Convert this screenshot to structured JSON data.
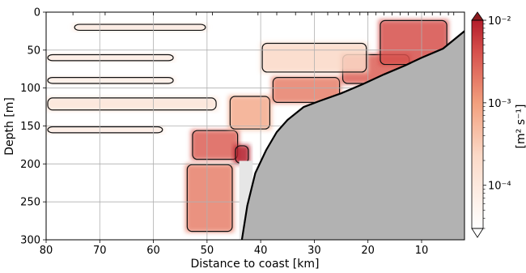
{
  "chart_data": {
    "type": "heatmap",
    "title": "",
    "xlabel": "Distance to coast [km]",
    "ylabel": "Depth [m]",
    "xlim": [
      80,
      2
    ],
    "ylim": [
      300,
      0
    ],
    "x_ticks": [
      80,
      70,
      60,
      50,
      40,
      30,
      20,
      10
    ],
    "y_ticks": [
      0,
      50,
      100,
      150,
      200,
      250,
      300
    ],
    "grid": true,
    "colormap": {
      "low": "#ffffff",
      "mid": "#f2a07e",
      "high": "#b31d2b",
      "top_extend": "#8b1a1f"
    },
    "colorbar": {
      "label": "[m² s⁻¹]",
      "scale": "log",
      "range": [
        3e-05,
        0.01
      ],
      "ticks": [
        {
          "value": 0.01,
          "label": "10⁻²"
        },
        {
          "value": 0.001,
          "label": "10⁻³"
        },
        {
          "value": 0.0001,
          "label": "10⁻⁴"
        }
      ]
    },
    "bathymetry": {
      "color": "#b2b2b2",
      "points": [
        [
          43.5,
          300
        ],
        [
          42.5,
          255
        ],
        [
          41,
          212
        ],
        [
          39,
          182
        ],
        [
          37,
          158
        ],
        [
          35,
          142
        ],
        [
          32,
          125
        ],
        [
          29,
          117
        ],
        [
          25,
          107
        ],
        [
          21,
          95
        ],
        [
          17,
          82
        ],
        [
          13,
          70
        ],
        [
          10,
          60
        ],
        [
          6,
          48
        ],
        [
          2,
          25
        ]
      ]
    },
    "data_gap": {
      "x": [
        44,
        41.5
      ],
      "y": [
        196,
        300
      ]
    },
    "station_ticks": [
      75,
      69,
      60,
      52,
      49,
      40.5,
      37,
      33.5,
      30.5,
      27.5,
      25.5,
      23.5,
      21.5,
      20,
      18.5,
      17,
      15.5,
      14,
      12.5,
      11,
      9.5,
      8,
      6.5,
      5,
      4
    ],
    "high_diffusivity_patches": [
      {
        "x": [
          53,
          44
        ],
        "y": [
          155,
          195
        ],
        "level": 0.8
      },
      {
        "x": [
          45,
          42
        ],
        "y": [
          175,
          200
        ],
        "level": 1.0
      },
      {
        "x": [
          54,
          45
        ],
        "y": [
          200,
          290
        ],
        "level": 0.7
      },
      {
        "x": [
          46,
          38
        ],
        "y": [
          110,
          155
        ],
        "level": 0.55
      },
      {
        "x": [
          38,
          25
        ],
        "y": [
          85,
          120
        ],
        "level": 0.7
      },
      {
        "x": [
          25,
          12
        ],
        "y": [
          55,
          95
        ],
        "level": 0.8
      },
      {
        "x": [
          18,
          5
        ],
        "y": [
          10,
          70
        ],
        "level": 0.85
      },
      {
        "x": [
          40,
          20
        ],
        "y": [
          40,
          80
        ],
        "level": 0.35
      },
      {
        "x": [
          80,
          56
        ],
        "y": [
          55,
          65
        ],
        "level": 0.2
      },
      {
        "x": [
          80,
          56
        ],
        "y": [
          85,
          95
        ],
        "level": 0.18
      },
      {
        "x": [
          80,
          48
        ],
        "y": [
          112,
          130
        ],
        "level": 0.25
      },
      {
        "x": [
          80,
          58
        ],
        "y": [
          150,
          160
        ],
        "level": 0.2
      },
      {
        "x": [
          75,
          50
        ],
        "y": [
          15,
          25
        ],
        "level": 0.22
      }
    ]
  }
}
